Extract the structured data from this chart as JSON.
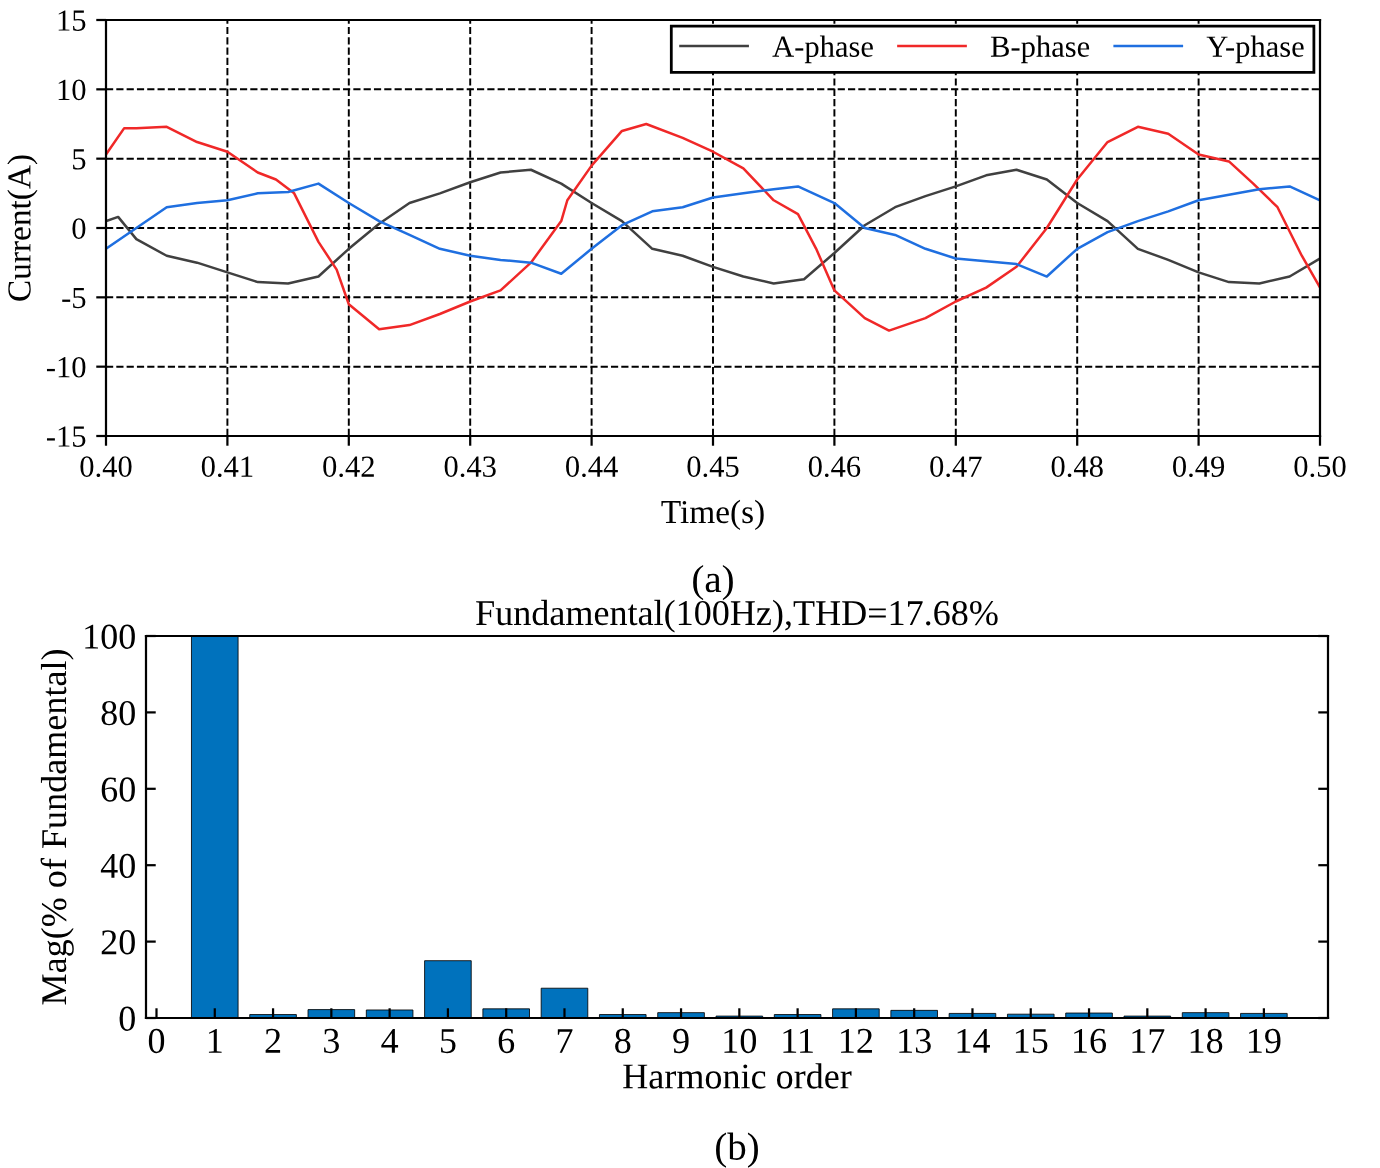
{
  "chart_data": [
    {
      "type": "line",
      "xlabel": "Time(s)",
      "ylabel": "Current(A)",
      "annotations": [
        "(a)"
      ],
      "xlim": [
        0.4,
        0.5
      ],
      "xticks": [
        {
          "value": 0.4,
          "label": "0.40"
        },
        0.41,
        0.42,
        0.43,
        0.44,
        0.45,
        0.46,
        0.47,
        0.48,
        0.49,
        {
          "value": 0.5,
          "label": "0.50"
        }
      ],
      "ylim": [
        -15,
        15
      ],
      "yticks": [
        -15,
        -10,
        -5,
        0,
        5,
        10,
        15
      ],
      "grid": true,
      "legend": "top right",
      "line_style": "solid",
      "marker": "none",
      "series": [
        {
          "name": "A-phase",
          "color": "#404040",
          "x": [
            0.4,
            0.401,
            0.4025,
            0.405,
            0.4075,
            0.41,
            0.4125,
            0.415,
            0.4175,
            0.42,
            0.4225,
            0.425,
            0.4275,
            0.43,
            0.4325,
            0.435,
            0.4375,
            0.44,
            0.4425,
            0.445,
            0.4475,
            0.45,
            0.4525,
            0.455,
            0.4575,
            0.46,
            0.4625,
            0.465,
            0.4675,
            0.47,
            0.4725,
            0.475,
            0.4775,
            0.48,
            0.4825,
            0.485,
            0.4875,
            0.49,
            0.4925,
            0.495,
            0.4975,
            0.5
          ],
          "values": [
            0.5,
            0.8,
            -0.8,
            -2.0,
            -2.5,
            -3.2,
            -3.9,
            -4.0,
            -3.5,
            -1.5,
            0.3,
            1.8,
            2.5,
            3.3,
            4.0,
            4.2,
            3.2,
            1.8,
            0.5,
            -1.5,
            -2.0,
            -2.8,
            -3.5,
            -4.0,
            -3.7,
            -1.8,
            0.2,
            1.5,
            2.3,
            3.0,
            3.8,
            4.2,
            3.5,
            1.8,
            0.5,
            -1.5,
            -2.3,
            -3.2,
            -3.9,
            -4.0,
            -3.5,
            -2.2
          ]
        },
        {
          "name": "B-phase",
          "color": "#f02828",
          "x": [
            0.4,
            0.4015,
            0.4025,
            0.405,
            0.4075,
            0.41,
            0.4125,
            0.414,
            0.4155,
            0.4175,
            0.419,
            0.42,
            0.4225,
            0.425,
            0.4275,
            0.43,
            0.4325,
            0.435,
            0.4375,
            0.438,
            0.44,
            0.4425,
            0.4445,
            0.4475,
            0.45,
            0.4525,
            0.455,
            0.457,
            0.4585,
            0.46,
            0.4625,
            0.4645,
            0.4675,
            0.47,
            0.4725,
            0.475,
            0.4775,
            0.48,
            0.4825,
            0.485,
            0.4875,
            0.49,
            0.4925,
            0.4945,
            0.4965,
            0.4985,
            0.5
          ],
          "values": [
            5.3,
            7.2,
            7.2,
            7.3,
            6.2,
            5.5,
            4.0,
            3.5,
            2.5,
            -1.0,
            -3.0,
            -5.5,
            -7.3,
            -7.0,
            -6.2,
            -5.3,
            -4.5,
            -2.5,
            0.5,
            2.0,
            4.5,
            7.0,
            7.5,
            6.5,
            5.5,
            4.3,
            2.0,
            1.0,
            -1.5,
            -4.5,
            -6.5,
            -7.4,
            -6.5,
            -5.3,
            -4.3,
            -2.8,
            0.0,
            3.5,
            6.2,
            7.3,
            6.8,
            5.3,
            4.8,
            3.2,
            1.5,
            -2.0,
            -4.3
          ]
        },
        {
          "name": "Y-phase",
          "color": "#1f6fe0",
          "x": [
            0.4,
            0.4025,
            0.405,
            0.4075,
            0.41,
            0.4125,
            0.415,
            0.4175,
            0.42,
            0.4225,
            0.425,
            0.4275,
            0.43,
            0.4325,
            0.435,
            0.4375,
            0.44,
            0.4425,
            0.445,
            0.4475,
            0.45,
            0.4525,
            0.455,
            0.457,
            0.46,
            0.4625,
            0.465,
            0.4675,
            0.47,
            0.4725,
            0.475,
            0.4775,
            0.48,
            0.4825,
            0.485,
            0.4875,
            0.49,
            0.4925,
            0.495,
            0.4975,
            0.5
          ],
          "values": [
            -1.5,
            0.0,
            1.5,
            1.8,
            2.0,
            2.5,
            2.6,
            3.2,
            1.8,
            0.5,
            -0.5,
            -1.5,
            -2.0,
            -2.3,
            -2.5,
            -3.3,
            -1.5,
            0.2,
            1.2,
            1.5,
            2.2,
            2.5,
            2.8,
            3.0,
            1.8,
            0.0,
            -0.5,
            -1.5,
            -2.2,
            -2.4,
            -2.6,
            -3.5,
            -1.5,
            -0.3,
            0.5,
            1.2,
            2.0,
            2.4,
            2.8,
            3.0,
            2.0
          ]
        }
      ]
    },
    {
      "type": "bar",
      "title": "Fundamental(100Hz),THD=17.68%",
      "xlabel": "Harmonic order",
      "ylabel": "Mag(% of Fundamental)",
      "annotations": [
        "(b)"
      ],
      "x": [
        1,
        2,
        3,
        4,
        5,
        6,
        7,
        8,
        9,
        10,
        11,
        12,
        13,
        14,
        15,
        16,
        17,
        18,
        19
      ],
      "values": [
        100,
        0.9,
        2.2,
        2.1,
        15,
        2.4,
        7.8,
        0.9,
        1.4,
        0.5,
        0.9,
        2.4,
        2.0,
        1.2,
        1.0,
        1.3,
        0.5,
        1.4,
        1.2
      ],
      "color": "#0072bd",
      "xlim": [
        -0.18,
        20.1
      ],
      "xticks": [
        0,
        1,
        2,
        3,
        4,
        5,
        6,
        7,
        8,
        9,
        10,
        11,
        12,
        13,
        14,
        15,
        16,
        17,
        18,
        19
      ],
      "ylim": [
        0,
        100
      ],
      "yticks": [
        0,
        20,
        40,
        60,
        80,
        100
      ],
      "grid": false,
      "legend": false
    }
  ]
}
